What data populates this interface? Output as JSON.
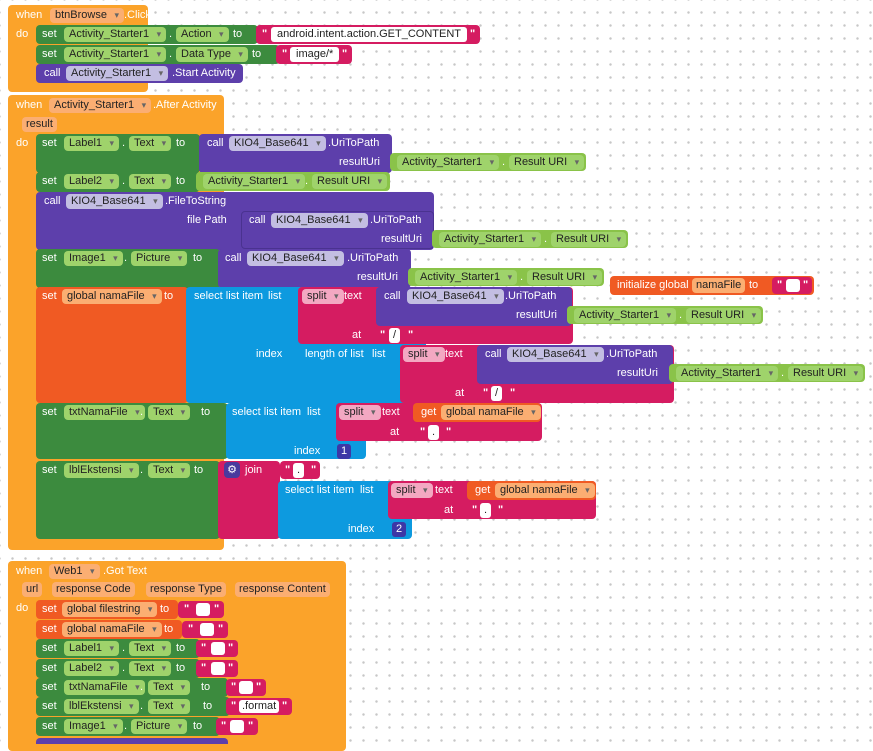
{
  "blocks": {
    "when_kw": "when",
    "do_kw": "do",
    "set_kw": "set",
    "to_kw": "to",
    "call_kw": "call",
    "dot": ".",
    "b1": {
      "component": "btnBrowse",
      "event": ".Click",
      "l1_comp": "Activity_Starter1",
      "l1_prop": "Action",
      "l1_val": "android.intent.action.GET_CONTENT",
      "l2_comp": "Activity_Starter1",
      "l2_prop": "Data Type",
      "l2_val": "image/*",
      "l3_comp": "Activity_Starter1",
      "l3_method": ".Start Activity"
    },
    "b2": {
      "component": "Activity_Starter1",
      "event": ".After Activity",
      "param": "result",
      "uri_method": ".UriToPath",
      "result_uri_label": "resultUri",
      "result_uri_prop": "Result URI",
      "kio": "KIO4_Base641",
      "as": "Activity_Starter1",
      "label1": "Label1",
      "label2": "Label2",
      "text_prop": "Text",
      "file_to_string": ".FileToString",
      "file_path_label": "file Path",
      "image1": "Image1",
      "picture_prop": "Picture",
      "global_var": "global namaFile",
      "select_list_item": "select list item",
      "list_kw": "list",
      "split_kw": "split",
      "text_kw": "text",
      "at_kw": "at",
      "index_kw": "index",
      "length_of_list": "length of list",
      "slash": "/",
      "dot_str": ".",
      "txt_nama_file": "txtNamaFile",
      "get_kw": "get",
      "get_global": "global namaFile",
      "index_one": "1",
      "index_two": "2",
      "lbl_ekstensi": "lblEkstensi",
      "join_kw": "join"
    },
    "init": {
      "label": "initialize global",
      "name": "namaFile",
      "to_kw": "to",
      "value": ""
    },
    "b3": {
      "component": "Web1",
      "event": ".Got Text",
      "params": [
        "url",
        "response Code",
        "response Type",
        "response Content"
      ],
      "g_filestring": "global filestring",
      "g_namafile": "global namaFile",
      "label1": "Label1",
      "label2": "Label2",
      "txt_nama_file": "txtNamaFile",
      "lbl_ekstensi": "lblEkstensi",
      "image1": "Image1",
      "text_prop": "Text",
      "picture_prop": "Picture",
      "format_val": ".format",
      "empty_val": ""
    }
  }
}
